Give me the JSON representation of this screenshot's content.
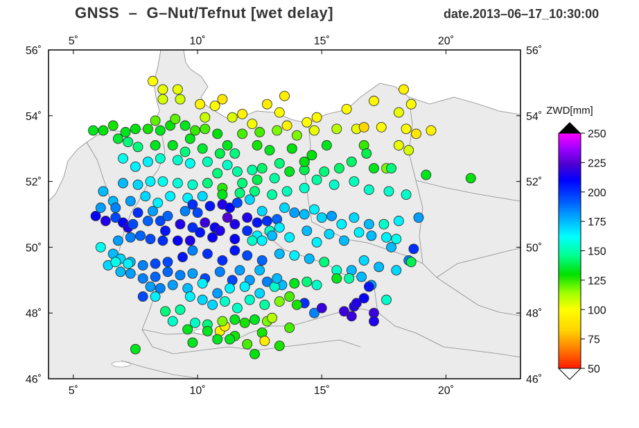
{
  "header": {
    "title": "GNSS  –  G–Nut/Tefnut [wet delay]",
    "date": "date.2013–06–17_10:30:00"
  },
  "map": {
    "lon_range": [
      4,
      23
    ],
    "lat_range": [
      46,
      56
    ],
    "lon_ticks": [
      5,
      10,
      15,
      20
    ],
    "lat_ticks": [
      46,
      48,
      50,
      52,
      54,
      56
    ],
    "lon_tick_labels": [
      "5˚",
      "10˚",
      "15˚",
      "20˚"
    ],
    "lat_tick_labels": [
      "46˚",
      "48˚",
      "50˚",
      "52˚",
      "54˚",
      "56˚"
    ],
    "colors": {
      "land": "#ebebeb",
      "water": "#ffffff",
      "border": "#888888",
      "frame": "#000000"
    },
    "station_marker": "filled circle, black outline"
  },
  "colorbar": {
    "title": "ZWD[mm]",
    "ticks": [
      "250",
      "225",
      "200",
      "175",
      "150",
      "125",
      "100",
      "75",
      "50"
    ],
    "tick_values": [
      250,
      225,
      200,
      175,
      150,
      125,
      100,
      75,
      50
    ],
    "range": [
      50,
      250
    ],
    "extend": "both",
    "colors": [
      "#ff1a00",
      "#ff7a00",
      "#ffd200",
      "#ffff00",
      "#a0ff00",
      "#00e000",
      "#00ff90",
      "#00ffff",
      "#00aaff",
      "#0050ff",
      "#0000ff",
      "#5000d0",
      "#9900ff",
      "#ff00ff"
    ]
  },
  "chart_data": {
    "type": "scatter",
    "title": "GNSS  –  G–Nut/Tefnut [wet delay]",
    "xlabel": "",
    "ylabel": "",
    "x_unit": "longitude (°E)",
    "y_unit": "latitude (°N)",
    "value_name": "ZWD[mm]",
    "xlim": [
      4,
      23
    ],
    "ylim": [
      46,
      56
    ],
    "points": [
      [
        8.2,
        55.05,
        96
      ],
      [
        8.6,
        54.8,
        100
      ],
      [
        9.2,
        54.8,
        100
      ],
      [
        8.6,
        54.5,
        103
      ],
      [
        9.3,
        54.5,
        104
      ],
      [
        10.1,
        54.35,
        92
      ],
      [
        10.7,
        54.3,
        95
      ],
      [
        11.0,
        54.5,
        88
      ],
      [
        11.8,
        54.05,
        92
      ],
      [
        12.8,
        54.35,
        90
      ],
      [
        13.5,
        54.6,
        90
      ],
      [
        13.3,
        54.1,
        96
      ],
      [
        13.6,
        53.7,
        92
      ],
      [
        12.2,
        53.75,
        98
      ],
      [
        11.4,
        53.95,
        102
      ],
      [
        10.3,
        53.95,
        105
      ],
      [
        14.4,
        53.8,
        95
      ],
      [
        14.8,
        53.95,
        93
      ],
      [
        14.7,
        53.55,
        100
      ],
      [
        16.0,
        54.2,
        95
      ],
      [
        17.1,
        54.45,
        93
      ],
      [
        18.3,
        54.8,
        92
      ],
      [
        18.6,
        54.35,
        95
      ],
      [
        18.1,
        54.1,
        100
      ],
      [
        17.4,
        53.65,
        95
      ],
      [
        16.4,
        53.6,
        100
      ],
      [
        15.6,
        53.6,
        108
      ],
      [
        16.7,
        53.65,
        82
      ],
      [
        18.4,
        53.6,
        95
      ],
      [
        18.8,
        53.45,
        88
      ],
      [
        19.4,
        53.55,
        92
      ],
      [
        18.1,
        53.1,
        100
      ],
      [
        18.5,
        52.95,
        103
      ],
      [
        16.7,
        53.1,
        122
      ],
      [
        15.2,
        53.1,
        130
      ],
      [
        17.6,
        52.4,
        115
      ],
      [
        17.1,
        52.4,
        130
      ],
      [
        17.8,
        52.4,
        140
      ],
      [
        19.2,
        52.2,
        130
      ],
      [
        21.0,
        52.1,
        128
      ],
      [
        5.8,
        53.55,
        130
      ],
      [
        6.2,
        53.55,
        128
      ],
      [
        6.6,
        53.7,
        125
      ],
      [
        7.1,
        53.5,
        130
      ],
      [
        7.5,
        53.6,
        128
      ],
      [
        6.8,
        53.3,
        132
      ],
      [
        7.2,
        53.2,
        140
      ],
      [
        8.0,
        53.6,
        125
      ],
      [
        8.5,
        53.55,
        130
      ],
      [
        8.9,
        53.7,
        128
      ],
      [
        9.5,
        53.7,
        130
      ],
      [
        9.9,
        53.55,
        122
      ],
      [
        8.3,
        53.85,
        118
      ],
      [
        9.1,
        53.9,
        118
      ],
      [
        9.7,
        53.3,
        130
      ],
      [
        10.3,
        53.6,
        120
      ],
      [
        10.8,
        53.45,
        128
      ],
      [
        11.2,
        53.1,
        130
      ],
      [
        11.8,
        53.45,
        120
      ],
      [
        12.5,
        53.5,
        120
      ],
      [
        13.2,
        53.55,
        115
      ],
      [
        14.0,
        53.4,
        115
      ],
      [
        13.8,
        53.0,
        128
      ],
      [
        12.9,
        52.95,
        130
      ],
      [
        12.4,
        53.1,
        125
      ],
      [
        11.5,
        52.85,
        140
      ],
      [
        10.9,
        52.85,
        135
      ],
      [
        10.2,
        53.0,
        132
      ],
      [
        9.5,
        52.9,
        140
      ],
      [
        9.0,
        53.1,
        130
      ],
      [
        8.3,
        53.1,
        130
      ],
      [
        7.6,
        53.05,
        140
      ],
      [
        7.0,
        52.7,
        155
      ],
      [
        7.5,
        52.45,
        160
      ],
      [
        8.0,
        52.6,
        160
      ],
      [
        8.5,
        52.7,
        150
      ],
      [
        9.2,
        52.65,
        150
      ],
      [
        9.7,
        52.55,
        155
      ],
      [
        10.4,
        52.6,
        148
      ],
      [
        10.8,
        52.25,
        140
      ],
      [
        11.2,
        52.5,
        150
      ],
      [
        11.6,
        52.3,
        145
      ],
      [
        12.2,
        52.35,
        145
      ],
      [
        12.6,
        52.4,
        138
      ],
      [
        13.3,
        52.55,
        140
      ],
      [
        13.7,
        52.3,
        130
      ],
      [
        14.3,
        52.35,
        135
      ],
      [
        14.6,
        52.8,
        128
      ],
      [
        14.3,
        52.6,
        128
      ],
      [
        13.1,
        52.1,
        145
      ],
      [
        12.4,
        52.05,
        135
      ],
      [
        11.8,
        51.95,
        140
      ],
      [
        11.0,
        51.8,
        123
      ],
      [
        10.4,
        51.95,
        140
      ],
      [
        9.8,
        51.9,
        150
      ],
      [
        9.2,
        51.95,
        152
      ],
      [
        8.6,
        52.0,
        155
      ],
      [
        8.1,
        52.0,
        160
      ],
      [
        7.6,
        51.9,
        165
      ],
      [
        7.0,
        51.95,
        170
      ],
      [
        6.2,
        51.7,
        170
      ],
      [
        6.6,
        51.4,
        170
      ],
      [
        7.3,
        51.4,
        175
      ],
      [
        7.9,
        51.55,
        165
      ],
      [
        8.4,
        51.35,
        160
      ],
      [
        8.9,
        51.55,
        160
      ],
      [
        9.6,
        51.5,
        160
      ],
      [
        10.2,
        51.55,
        165
      ],
      [
        11.0,
        51.6,
        130
      ],
      [
        11.7,
        51.65,
        140
      ],
      [
        12.3,
        51.7,
        140
      ],
      [
        13.0,
        51.6,
        145
      ],
      [
        13.6,
        51.7,
        148
      ],
      [
        14.3,
        51.8,
        150
      ],
      [
        14.8,
        52.05,
        145
      ],
      [
        15.5,
        51.9,
        150
      ],
      [
        16.3,
        52.0,
        148
      ],
      [
        16.9,
        51.75,
        150
      ],
      [
        17.7,
        51.7,
        150
      ],
      [
        18.4,
        51.6,
        150
      ],
      [
        15.1,
        52.3,
        140
      ],
      [
        15.7,
        52.4,
        138
      ],
      [
        16.2,
        52.6,
        138
      ],
      [
        16.8,
        52.85,
        135
      ],
      [
        5.9,
        50.95,
        205
      ],
      [
        6.3,
        50.8,
        210
      ],
      [
        6.7,
        50.9,
        190
      ],
      [
        7.0,
        50.75,
        205
      ],
      [
        7.2,
        50.6,
        210
      ],
      [
        6.1,
        51.2,
        175
      ],
      [
        6.7,
        51.2,
        180
      ],
      [
        7.6,
        51.05,
        195
      ],
      [
        7.4,
        50.7,
        190
      ],
      [
        8.2,
        51.1,
        175
      ],
      [
        8.5,
        50.8,
        190
      ],
      [
        8.0,
        50.8,
        185
      ],
      [
        8.8,
        50.95,
        185
      ],
      [
        9.5,
        51.1,
        180
      ],
      [
        10.0,
        51.05,
        190
      ],
      [
        10.5,
        51.25,
        200
      ],
      [
        11.0,
        51.3,
        210
      ],
      [
        11.3,
        51.2,
        205
      ],
      [
        11.6,
        51.35,
        190
      ],
      [
        9.8,
        51.3,
        195
      ],
      [
        9.3,
        50.7,
        210
      ],
      [
        9.8,
        50.6,
        195
      ],
      [
        10.3,
        50.75,
        215
      ],
      [
        10.7,
        50.6,
        205
      ],
      [
        11.2,
        50.9,
        220
      ],
      [
        11.5,
        50.7,
        210
      ],
      [
        12.0,
        50.9,
        210
      ],
      [
        12.4,
        50.75,
        200
      ],
      [
        12.8,
        50.8,
        195
      ],
      [
        13.2,
        50.85,
        185
      ],
      [
        13.5,
        51.2,
        165
      ],
      [
        13.9,
        51.05,
        175
      ],
      [
        14.3,
        51.0,
        170
      ],
      [
        14.7,
        51.15,
        160
      ],
      [
        15.0,
        50.9,
        165
      ],
      [
        15.4,
        50.95,
        175
      ],
      [
        15.8,
        50.7,
        160
      ],
      [
        16.3,
        50.9,
        165
      ],
      [
        16.9,
        50.7,
        170
      ],
      [
        17.5,
        50.7,
        150
      ],
      [
        18.1,
        50.8,
        160
      ],
      [
        18.9,
        50.9,
        175
      ],
      [
        12.1,
        51.45,
        165
      ],
      [
        12.6,
        51.1,
        165
      ],
      [
        8.7,
        50.5,
        200
      ],
      [
        9.2,
        50.2,
        205
      ],
      [
        9.7,
        50.2,
        210
      ],
      [
        10.1,
        50.45,
        200
      ],
      [
        10.6,
        50.3,
        205
      ],
      [
        10.9,
        50.5,
        210
      ],
      [
        11.5,
        50.25,
        205
      ],
      [
        12.0,
        50.5,
        195
      ],
      [
        12.4,
        50.35,
        160
      ],
      [
        12.9,
        50.5,
        150
      ],
      [
        13.3,
        50.6,
        160
      ],
      [
        12.2,
        50.2,
        150
      ],
      [
        12.6,
        50.2,
        160
      ],
      [
        13.0,
        50.35,
        170
      ],
      [
        13.7,
        50.3,
        160
      ],
      [
        14.4,
        50.5,
        170
      ],
      [
        14.8,
        50.15,
        160
      ],
      [
        15.3,
        50.4,
        165
      ],
      [
        15.9,
        50.2,
        170
      ],
      [
        16.5,
        50.45,
        160
      ],
      [
        17.0,
        50.35,
        170
      ],
      [
        17.6,
        50.3,
        160
      ],
      [
        18.0,
        50.25,
        155
      ],
      [
        17.8,
        50.0,
        170
      ],
      [
        18.7,
        49.95,
        195
      ],
      [
        18.5,
        49.6,
        180
      ],
      [
        8.1,
        50.25,
        190
      ],
      [
        8.6,
        50.2,
        195
      ],
      [
        7.3,
        50.3,
        180
      ],
      [
        7.7,
        50.35,
        185
      ],
      [
        6.8,
        50.2,
        175
      ],
      [
        6.1,
        50.0,
        155
      ],
      [
        6.6,
        49.8,
        170
      ],
      [
        6.9,
        49.65,
        165
      ],
      [
        7.3,
        49.55,
        170
      ],
      [
        7.8,
        49.45,
        180
      ],
      [
        8.3,
        49.5,
        190
      ],
      [
        8.8,
        49.55,
        190
      ],
      [
        9.4,
        49.7,
        200
      ],
      [
        9.8,
        49.9,
        180
      ],
      [
        10.4,
        49.8,
        195
      ],
      [
        11.0,
        49.6,
        195
      ],
      [
        11.5,
        49.9,
        200
      ],
      [
        12.0,
        49.75,
        190
      ],
      [
        12.6,
        49.6,
        185
      ],
      [
        13.3,
        49.8,
        170
      ],
      [
        13.9,
        49.75,
        160
      ],
      [
        14.5,
        49.65,
        170
      ],
      [
        15.1,
        49.55,
        140
      ],
      [
        15.6,
        49.3,
        150
      ],
      [
        16.2,
        49.3,
        170
      ],
      [
        16.7,
        49.6,
        165
      ],
      [
        17.3,
        49.4,
        170
      ],
      [
        18.0,
        49.3,
        165
      ],
      [
        18.6,
        49.55,
        135
      ],
      [
        6.4,
        49.45,
        165
      ],
      [
        6.9,
        49.25,
        170
      ],
      [
        7.3,
        49.2,
        175
      ],
      [
        7.8,
        49.05,
        180
      ],
      [
        8.3,
        49.1,
        185
      ],
      [
        8.8,
        49.25,
        185
      ],
      [
        9.3,
        49.15,
        180
      ],
      [
        9.8,
        49.2,
        175
      ],
      [
        10.3,
        49.05,
        190
      ],
      [
        10.9,
        49.25,
        180
      ],
      [
        11.4,
        49.0,
        190
      ],
      [
        12.1,
        49.0,
        175
      ],
      [
        12.8,
        48.95,
        180
      ],
      [
        13.4,
        48.85,
        170
      ],
      [
        13.9,
        48.9,
        130
      ],
      [
        14.4,
        48.95,
        140
      ],
      [
        14.8,
        48.85,
        150
      ],
      [
        15.6,
        49.05,
        130
      ],
      [
        16.1,
        49.05,
        145
      ],
      [
        16.6,
        49.1,
        170
      ],
      [
        17.0,
        48.85,
        175
      ],
      [
        6.7,
        49.55,
        155
      ],
      [
        7.2,
        49.5,
        160
      ],
      [
        8.1,
        48.8,
        175
      ],
      [
        8.5,
        48.75,
        180
      ],
      [
        9.0,
        48.85,
        175
      ],
      [
        9.6,
        48.75,
        170
      ],
      [
        10.2,
        48.9,
        160
      ],
      [
        10.8,
        48.6,
        175
      ],
      [
        11.3,
        48.75,
        160
      ],
      [
        11.9,
        48.8,
        160
      ],
      [
        12.5,
        48.6,
        165
      ],
      [
        13.1,
        48.8,
        150
      ],
      [
        13.7,
        48.5,
        120
      ],
      [
        14.3,
        48.3,
        195
      ],
      [
        8.3,
        48.5,
        160
      ],
      [
        7.8,
        48.5,
        190
      ],
      [
        8.7,
        48.05,
        140
      ],
      [
        9.3,
        48.1,
        145
      ],
      [
        9.7,
        48.5,
        160
      ],
      [
        10.2,
        48.4,
        165
      ],
      [
        10.6,
        48.25,
        165
      ],
      [
        11.1,
        48.35,
        150
      ],
      [
        11.6,
        48.15,
        150
      ],
      [
        12.1,
        48.4,
        150
      ],
      [
        12.7,
        48.25,
        145
      ],
      [
        13.3,
        48.35,
        115
      ],
      [
        14.0,
        48.25,
        125
      ],
      [
        14.7,
        48.0,
        180
      ],
      [
        15.0,
        48.15,
        215
      ],
      [
        15.9,
        48.05,
        215
      ],
      [
        16.3,
        48.2,
        210
      ],
      [
        16.4,
        48.3,
        210
      ],
      [
        16.2,
        47.9,
        215
      ],
      [
        16.7,
        48.45,
        205
      ],
      [
        17.1,
        48.0,
        215
      ],
      [
        17.1,
        47.75,
        210
      ],
      [
        16.9,
        48.8,
        200
      ],
      [
        17.6,
        48.4,
        150
      ],
      [
        9.0,
        47.75,
        150
      ],
      [
        9.6,
        47.5,
        130
      ],
      [
        9.9,
        47.7,
        150
      ],
      [
        10.4,
        47.65,
        140
      ],
      [
        10.9,
        47.45,
        92
      ],
      [
        11.1,
        47.6,
        90
      ],
      [
        11.5,
        47.8,
        130
      ],
      [
        11.9,
        47.7,
        125
      ],
      [
        12.3,
        47.8,
        130
      ],
      [
        12.8,
        47.75,
        115
      ],
      [
        13.0,
        47.85,
        108
      ],
      [
        13.7,
        47.55,
        120
      ],
      [
        12.6,
        47.4,
        125
      ],
      [
        11.5,
        47.3,
        125
      ],
      [
        10.8,
        47.2,
        130
      ],
      [
        10.4,
        47.45,
        130
      ],
      [
        9.8,
        47.1,
        130
      ],
      [
        12.7,
        47.15,
        90
      ],
      [
        11.3,
        47.2,
        130
      ],
      [
        12.0,
        47.05,
        120
      ],
      [
        12.3,
        46.75,
        128
      ],
      [
        13.3,
        47.0,
        125
      ],
      [
        11.0,
        47.75,
        115
      ],
      [
        7.5,
        46.9,
        130
      ],
      [
        12.5,
        49.3,
        170
      ],
      [
        13.2,
        49.05,
        170
      ],
      [
        11.7,
        49.3,
        175
      ]
    ]
  }
}
